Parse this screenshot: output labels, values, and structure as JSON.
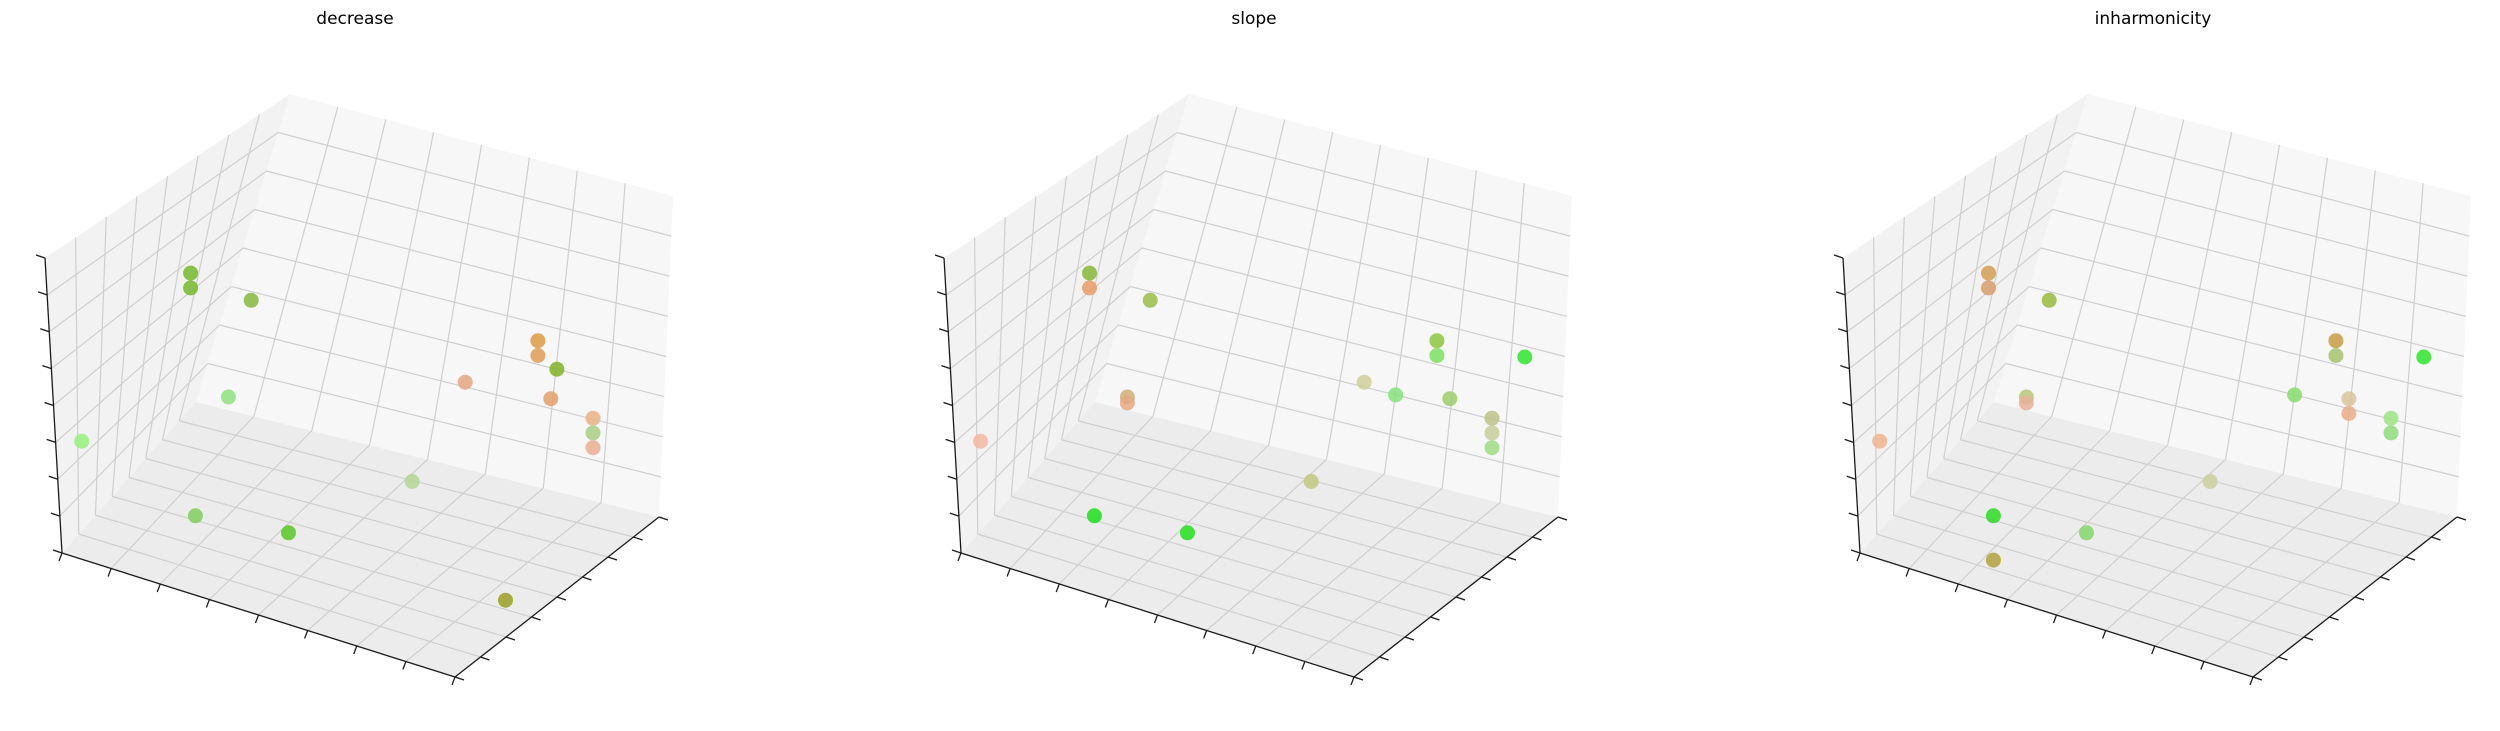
{
  "chart_data": [
    {
      "type": "scatter",
      "title": "decrease",
      "grid": true,
      "colors": [
        "#77b82d",
        "#77b82d",
        "#dd9a44",
        "#df9c55",
        "#7fb328",
        "#e2a06b",
        "#e5a783",
        "#86b840",
        "#ebb085",
        "#a8cc83",
        "#ecae92",
        "#8fe07e",
        "#b4d694",
        "#5bc825",
        "#84ce5d",
        "#9a9f21",
        "#98f07e"
      ],
      "points": [
        {
          "x": 0.25,
          "y": 0.8,
          "z": 0.95
        },
        {
          "x": 0.25,
          "y": 0.8,
          "z": 0.9
        },
        {
          "x": 0.8,
          "y": 0.15,
          "z": 0.6
        },
        {
          "x": 0.8,
          "y": 0.15,
          "z": 0.55
        },
        {
          "x": 0.8,
          "y": 0.05,
          "z": 0.45
        },
        {
          "x": 0.85,
          "y": 0.2,
          "z": 0.45
        },
        {
          "x": 0.7,
          "y": 0.3,
          "z": 0.5
        },
        {
          "x": 0.25,
          "y": 0.4,
          "z": 0.65
        },
        {
          "x": 0.9,
          "y": 0.1,
          "z": 0.35
        },
        {
          "x": 0.9,
          "y": 0.1,
          "z": 0.3
        },
        {
          "x": 0.9,
          "y": 0.1,
          "z": 0.25
        },
        {
          "x": 0.25,
          "y": 0.55,
          "z": 0.4
        },
        {
          "x": 0.6,
          "y": 0.35,
          "z": 0.15
        },
        {
          "x": 0.45,
          "y": 0.7,
          "z": 0.1
        },
        {
          "x": 0.3,
          "y": 0.9,
          "z": 0.2
        },
        {
          "x": 0.95,
          "y": 0.65,
          "z": 0.05
        },
        {
          "x": 0.05,
          "y": 1.0,
          "z": 0.4
        }
      ]
    },
    {
      "type": "scatter",
      "title": "slope",
      "grid": true,
      "colors": [
        "#88b83a",
        "#e69c68",
        "#8fc640",
        "#7de060",
        "#98be46",
        "#2fe52d",
        "#cfcf97",
        "#9cce6b",
        "#82e47c",
        "#bcc286",
        "#d0b077",
        "#e5aa82",
        "#c8cc9a",
        "#9fdc85",
        "#c2c77e",
        "#23e01d",
        "#1de01c",
        "#f3b7a2"
      ],
      "points": [
        {
          "x": 0.25,
          "y": 0.8,
          "z": 0.95
        },
        {
          "x": 0.25,
          "y": 0.8,
          "z": 0.9
        },
        {
          "x": 0.8,
          "y": 0.15,
          "z": 0.6
        },
        {
          "x": 0.8,
          "y": 0.15,
          "z": 0.55
        },
        {
          "x": 0.25,
          "y": 0.4,
          "z": 0.65
        },
        {
          "x": 0.95,
          "y": 0.05,
          "z": 0.55
        },
        {
          "x": 0.7,
          "y": 0.3,
          "z": 0.5
        },
        {
          "x": 0.85,
          "y": 0.2,
          "z": 0.45
        },
        {
          "x": 0.75,
          "y": 0.25,
          "z": 0.45
        },
        {
          "x": 0.9,
          "y": 0.1,
          "z": 0.35
        },
        {
          "x": 0.25,
          "y": 0.55,
          "z": 0.4
        },
        {
          "x": 0.25,
          "y": 0.55,
          "z": 0.38
        },
        {
          "x": 0.9,
          "y": 0.1,
          "z": 0.3
        },
        {
          "x": 0.9,
          "y": 0.1,
          "z": 0.25
        },
        {
          "x": 0.6,
          "y": 0.35,
          "z": 0.15
        },
        {
          "x": 0.45,
          "y": 0.7,
          "z": 0.1
        },
        {
          "x": 0.3,
          "y": 0.9,
          "z": 0.2
        },
        {
          "x": 0.05,
          "y": 1.0,
          "z": 0.4
        }
      ]
    },
    {
      "type": "scatter",
      "title": "inharmonicity",
      "grid": true,
      "colors": [
        "#d49e55",
        "#d59f6b",
        "#c89b45",
        "#a3c46c",
        "#98bb3d",
        "#2ee52a",
        "#d8c49c",
        "#e7ad8a",
        "#86dd6e",
        "#b7c67a",
        "#e8b098",
        "#9ee584",
        "#8fdc7c",
        "#cdcf9c",
        "#84d66b",
        "#2cdc24",
        "#b1a23b",
        "#f0b58e"
      ],
      "points": [
        {
          "x": 0.25,
          "y": 0.8,
          "z": 0.95
        },
        {
          "x": 0.25,
          "y": 0.8,
          "z": 0.9
        },
        {
          "x": 0.8,
          "y": 0.15,
          "z": 0.6
        },
        {
          "x": 0.8,
          "y": 0.15,
          "z": 0.55
        },
        {
          "x": 0.25,
          "y": 0.4,
          "z": 0.65
        },
        {
          "x": 0.95,
          "y": 0.05,
          "z": 0.55
        },
        {
          "x": 0.85,
          "y": 0.2,
          "z": 0.45
        },
        {
          "x": 0.85,
          "y": 0.2,
          "z": 0.4
        },
        {
          "x": 0.75,
          "y": 0.25,
          "z": 0.45
        },
        {
          "x": 0.25,
          "y": 0.55,
          "z": 0.4
        },
        {
          "x": 0.25,
          "y": 0.55,
          "z": 0.38
        },
        {
          "x": 0.9,
          "y": 0.1,
          "z": 0.35
        },
        {
          "x": 0.9,
          "y": 0.1,
          "z": 0.3
        },
        {
          "x": 0.6,
          "y": 0.35,
          "z": 0.15
        },
        {
          "x": 0.45,
          "y": 0.7,
          "z": 0.1
        },
        {
          "x": 0.3,
          "y": 0.9,
          "z": 0.2
        },
        {
          "x": 0.3,
          "y": 0.9,
          "z": 0.05
        },
        {
          "x": 0.05,
          "y": 1.0,
          "z": 0.4
        }
      ]
    }
  ]
}
